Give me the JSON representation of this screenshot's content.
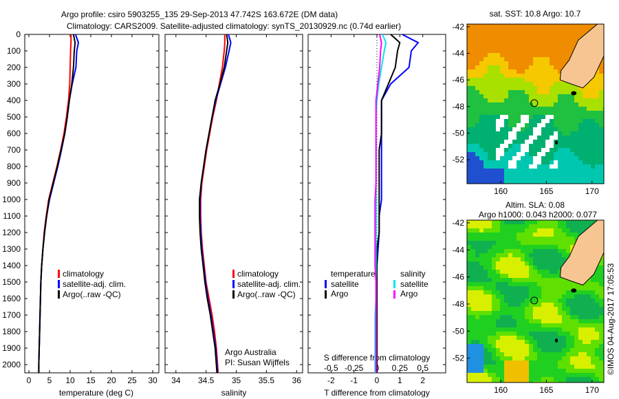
{
  "title_line1": "Argo profile: csiro 5903255_135 29-Sep-2013 47.742S 163.672E (DM data)",
  "title_line2": "Climatology: CARS2009. Satellite-adjusted climatology: synTS_20130929.nc (0.74d earlier)",
  "colors": {
    "climatology": "#ff0000",
    "satellite": "#0000ff",
    "argo": "#000000",
    "sal_satellite": "#00e5e5",
    "sal_argo": "#ff00ff",
    "land": "#f7c592"
  },
  "chart_data": [
    {
      "type": "line",
      "id": "temperature",
      "xlabel": "temperature (deg C)",
      "ylabel": "",
      "xlim": [
        -1,
        31.5
      ],
      "ylim": [
        2050,
        0
      ],
      "xticks": [
        0,
        5,
        10,
        15,
        20,
        25,
        30
      ],
      "yticks": [
        0,
        100,
        200,
        300,
        400,
        500,
        600,
        700,
        800,
        900,
        1000,
        1100,
        1200,
        1300,
        1400,
        1500,
        1600,
        1700,
        1800,
        1900,
        2000
      ],
      "legend_position": "lower-middle",
      "depth": [
        0,
        50,
        100,
        200,
        300,
        400,
        500,
        600,
        700,
        800,
        900,
        1000,
        1100,
        1200,
        1300,
        1400,
        1500,
        1600,
        1700,
        1800,
        1900,
        2000,
        2050
      ],
      "series": [
        {
          "name": "climatology",
          "color_key": "climatology",
          "values": [
            10.2,
            10.2,
            10.1,
            10.0,
            9.9,
            9.6,
            9.1,
            8.5,
            7.7,
            6.8,
            5.8,
            4.8,
            4.2,
            3.7,
            3.4,
            3.1,
            2.9,
            2.8,
            2.7,
            2.6,
            2.5,
            2.4,
            2.4
          ]
        },
        {
          "name": "satellite-adj. clim.",
          "color_key": "satellite",
          "values": [
            11.3,
            12.0,
            11.6,
            11.4,
            10.5,
            9.8,
            9.3,
            8.7,
            7.9,
            7.0,
            6.0,
            5.0,
            4.3,
            3.8,
            3.4,
            3.1,
            2.9,
            2.8,
            2.7,
            2.6,
            2.5,
            2.4,
            2.4
          ]
        },
        {
          "name": "Argo(..raw -QC)",
          "color_key": "argo",
          "values": [
            10.8,
            11.2,
            11.0,
            10.8,
            10.4,
            9.8,
            9.3,
            8.7,
            7.8,
            6.9,
            5.9,
            4.9,
            4.3,
            3.8,
            3.4,
            3.1,
            2.9,
            2.8,
            2.7,
            2.6,
            2.5,
            2.4,
            2.4
          ]
        }
      ]
    },
    {
      "type": "line",
      "id": "salinity",
      "xlabel": "salinity",
      "xlim": [
        33.82,
        36.1
      ],
      "ylim": [
        2050,
        0
      ],
      "xticks": [
        34,
        34.5,
        35,
        35.5,
        36
      ],
      "annotation": [
        "Argo Australia",
        "PI: Susan Wijffels"
      ],
      "depth": [
        0,
        50,
        100,
        200,
        300,
        400,
        500,
        600,
        700,
        800,
        900,
        1000,
        1100,
        1200,
        1300,
        1400,
        1500,
        1600,
        1700,
        1800,
        1900,
        2000,
        2050
      ],
      "series": [
        {
          "name": "climatology",
          "color_key": "climatology",
          "values": [
            34.81,
            34.81,
            34.8,
            34.77,
            34.72,
            34.67,
            34.61,
            34.56,
            34.51,
            34.47,
            34.43,
            34.41,
            34.41,
            34.42,
            34.44,
            34.47,
            34.5,
            34.55,
            34.6,
            34.64,
            34.67,
            34.69,
            34.7
          ]
        },
        {
          "name": "satellite-adj. clim.",
          "color_key": "satellite",
          "values": [
            34.87,
            34.91,
            34.88,
            34.82,
            34.74,
            34.66,
            34.6,
            34.55,
            34.5,
            34.46,
            34.42,
            34.4,
            34.4,
            34.41,
            34.43,
            34.46,
            34.49,
            34.53,
            34.58,
            34.62,
            34.66,
            34.68,
            34.69
          ]
        },
        {
          "name": "Argo(..raw -QC)",
          "color_key": "argo",
          "values": [
            34.84,
            34.86,
            34.84,
            34.8,
            34.73,
            34.65,
            34.6,
            34.55,
            34.5,
            34.46,
            34.42,
            34.39,
            34.39,
            34.4,
            34.42,
            34.45,
            34.48,
            34.52,
            34.57,
            34.61,
            34.65,
            34.67,
            34.68
          ]
        }
      ]
    },
    {
      "type": "line",
      "id": "differences",
      "xlabel": "T difference from climatology",
      "xlim": [
        -3,
        3
      ],
      "xticks": [
        -2,
        -1,
        0,
        1,
        2
      ],
      "top_xlabel": "S difference from climatology",
      "top_xlim": [
        -0.75,
        0.75
      ],
      "top_xticks": [
        "-0.5",
        "-0.25",
        "0",
        "0.25",
        "0.5"
      ],
      "top_xtick_values": [
        -0.5,
        -0.25,
        0,
        0.25,
        0.5
      ],
      "ylim": [
        2050,
        0
      ],
      "legend": {
        "temperature_heading": "temperature",
        "salinity_heading": "salinity"
      },
      "depth": [
        0,
        50,
        100,
        200,
        300,
        400,
        500,
        600,
        700,
        800,
        900,
        1000,
        1100,
        1200,
        1300,
        1400,
        1500,
        1600,
        1700,
        1800,
        1900,
        2000,
        2050
      ],
      "series": [
        {
          "name": "satellite",
          "group": "temperature",
          "color_key": "satellite",
          "values": [
            1.1,
            1.8,
            1.5,
            1.4,
            0.6,
            0.2,
            0.2,
            0.2,
            0.2,
            0.2,
            0.2,
            0.2,
            0.1,
            0.1,
            0.05,
            0.0,
            0.0,
            0.0,
            0.0,
            0.0,
            0.0,
            0.0,
            0.0
          ]
        },
        {
          "name": "Argo",
          "group": "temperature",
          "color_key": "argo",
          "values": [
            0.6,
            1.0,
            0.9,
            0.8,
            0.5,
            0.2,
            0.2,
            0.2,
            0.1,
            0.1,
            0.1,
            0.1,
            0.1,
            0.1,
            0.0,
            0.0,
            0.0,
            0.0,
            0.0,
            0.0,
            0.0,
            0.0,
            0.0
          ]
        },
        {
          "name": "satellite",
          "group": "salinity",
          "color_key": "sal_satellite",
          "values": [
            0.06,
            0.1,
            0.08,
            0.05,
            0.02,
            0.0,
            -0.01,
            -0.01,
            -0.01,
            -0.01,
            -0.01,
            -0.01,
            -0.01,
            -0.01,
            -0.01,
            -0.01,
            -0.01,
            -0.01,
            -0.02,
            -0.02,
            -0.02,
            -0.02,
            -0.02
          ]
        },
        {
          "name": "Argo",
          "group": "salinity",
          "color_key": "sal_argo",
          "values": [
            0.03,
            0.05,
            0.04,
            0.03,
            0.01,
            -0.01,
            -0.01,
            -0.01,
            -0.01,
            -0.01,
            -0.01,
            -0.02,
            -0.02,
            -0.02,
            -0.02,
            -0.02,
            -0.01,
            -0.01,
            -0.01,
            -0.01,
            -0.01,
            -0.01,
            -0.01
          ]
        }
      ]
    },
    {
      "type": "heatmap",
      "id": "sst-map",
      "title": "sat. SST: 10.8  Argo: 10.7",
      "xlim": [
        156.3,
        171.3
      ],
      "ylim": [
        -53.8,
        -41.8
      ],
      "xticks": [
        160,
        165,
        170
      ],
      "yticks": [
        -42,
        -44,
        -46,
        -48,
        -50,
        -52
      ],
      "profile_location": {
        "lon": 163.672,
        "lat": -47.742
      }
    },
    {
      "type": "heatmap",
      "id": "sla-map",
      "title_line1": "Altim. SLA: 0.08",
      "title_line2": "Argo h1000: 0.043  h2000: 0.077",
      "xlim": [
        156.3,
        171.3
      ],
      "ylim": [
        -53.8,
        -41.8
      ],
      "xticks": [
        160,
        165,
        170
      ],
      "yticks": [
        -42,
        -44,
        -46,
        -48,
        -50,
        -52
      ],
      "profile_location": {
        "lon": 163.672,
        "lat": -47.742
      }
    }
  ],
  "watermark": "©IMOS 04-Aug-2017 17:05:53"
}
